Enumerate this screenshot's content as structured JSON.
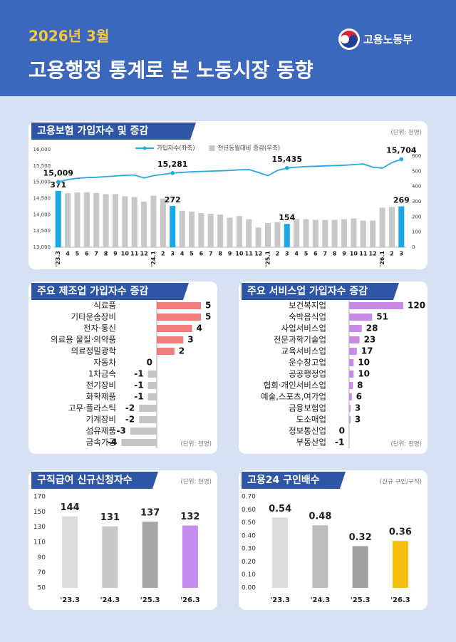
{
  "header": {
    "date": "2026년 3월",
    "title": "고용행정 통계로 본 노동시장 동향",
    "ministry": "고용노동부"
  },
  "chart_data": [
    {
      "type": "combo",
      "title": "고용보험 가입자수 및 증감",
      "unit": "(단위: 천명)",
      "categories": [
        "'23.3",
        "4",
        "5",
        "6",
        "7",
        "8",
        "9",
        "10",
        "11",
        "12",
        "'24.1",
        "2",
        "3",
        "4",
        "5",
        "6",
        "7",
        "8",
        "9",
        "10",
        "11",
        "12",
        "'25.1",
        "2",
        "3",
        "4",
        "5",
        "6",
        "7",
        "8",
        "9",
        "10",
        "11",
        "12",
        "'26.1",
        "2",
        "3"
      ],
      "series": [
        {
          "name": "가입자수(좌축)",
          "kind": "line",
          "color": "#29a8e0",
          "values": [
            15009,
            15080,
            15120,
            15140,
            15150,
            15170,
            15190,
            15210,
            15220,
            15130,
            15200,
            15240,
            15281,
            15300,
            15320,
            15330,
            15340,
            15350,
            15360,
            15380,
            15390,
            15300,
            15200,
            15360,
            15435,
            15460,
            15480,
            15490,
            15500,
            15510,
            15520,
            15540,
            15560,
            15460,
            15430,
            15600,
            15704
          ],
          "value_labels": [
            "15,009",
            null,
            null,
            null,
            null,
            null,
            null,
            null,
            null,
            null,
            null,
            null,
            "15,281",
            null,
            null,
            null,
            null,
            null,
            null,
            null,
            null,
            null,
            null,
            null,
            "15,435",
            null,
            null,
            null,
            null,
            null,
            null,
            null,
            null,
            null,
            null,
            null,
            "15,704"
          ]
        },
        {
          "name": "전년동월대비 증감(우축)",
          "kind": "bar",
          "axis": "y2",
          "color": "#c8c8c8",
          "highlight_color": "#1aa7e6",
          "values": [
            371,
            355,
            360,
            362,
            357,
            350,
            350,
            335,
            330,
            300,
            340,
            320,
            272,
            240,
            235,
            225,
            220,
            215,
            195,
            205,
            185,
            130,
            160,
            165,
            154,
            185,
            185,
            180,
            180,
            180,
            185,
            190,
            175,
            175,
            260,
            265,
            269
          ],
          "value_labels": [
            "371",
            null,
            null,
            null,
            null,
            null,
            null,
            null,
            null,
            null,
            null,
            null,
            "272",
            null,
            null,
            null,
            null,
            null,
            null,
            null,
            null,
            null,
            null,
            null,
            "154",
            null,
            null,
            null,
            null,
            null,
            null,
            null,
            null,
            null,
            null,
            null,
            "269"
          ]
        }
      ],
      "ylim": [
        13000,
        16000
      ],
      "yticks": [
        {
          "value": 13000,
          "label": "13,000"
        },
        {
          "value": 13500,
          "label": "13,500"
        },
        {
          "value": 14000,
          "label": "14,000"
        },
        {
          "value": 14500,
          "label": "14,500"
        },
        {
          "value": 15000,
          "label": "15,000"
        },
        {
          "value": 15500,
          "label": "15,500"
        },
        {
          "value": 16000,
          "label": "16,000"
        }
      ],
      "y2lim": [
        0,
        600
      ],
      "y2ticks": [
        0,
        100,
        200,
        300,
        400,
        500,
        600
      ]
    },
    {
      "type": "hbar",
      "title": "주요 제조업 가입자수 증감",
      "unit": "(단위: 천명)",
      "color": "#f07c7c",
      "negative_color": "#c4c4c4",
      "categories": [
        "식료품",
        "기타운송장비",
        "전자·통신",
        "의료용 물질·의약품",
        "의료정밀광학",
        "자동차",
        "1차금속",
        "전기장비",
        "화학제품",
        "고무·플라스틱",
        "기계장비",
        "섬유제품",
        "금속가공"
      ],
      "values": [
        5,
        5,
        4,
        3,
        2,
        0,
        -1,
        -1,
        -1,
        -2,
        -2,
        -3,
        -4
      ]
    },
    {
      "type": "hbar",
      "title": "주요 서비스업 가입자수 증감",
      "unit": "(단위: 천명)",
      "color": "#c98ce6",
      "negative_color": "#c4c4c4",
      "categories": [
        "보건복지업",
        "숙박음식업",
        "사업서비스업",
        "전문과학기술업",
        "교육서비스업",
        "운수창고업",
        "공공행정업",
        "협회·개인서비스업",
        "예술,스포츠,여가업",
        "금융보험업",
        "도소매업",
        "정보통신업",
        "부동산업"
      ],
      "values": [
        120,
        51,
        28,
        23,
        17,
        10,
        10,
        8,
        6,
        3,
        3,
        0,
        -1
      ]
    },
    {
      "type": "bar",
      "title": "구직급여 신규신청자수",
      "unit": "(단위: 천명)",
      "categories": [
        "'23.3",
        "'24.3",
        "'25.3",
        "'26.3"
      ],
      "values": [
        144,
        131,
        137,
        132
      ],
      "colors": [
        "#dcdcdc",
        "#c8c8c8",
        "#a6a6a6",
        "#c58df0"
      ],
      "ylim": [
        50,
        170
      ],
      "yticks": [
        50,
        70,
        90,
        110,
        130,
        150,
        170
      ]
    },
    {
      "type": "bar",
      "title": "고용24 구인배수",
      "unit": "(신규 구인/구직)",
      "categories": [
        "'23.3",
        "'24.3",
        "'25.3",
        "'26.3"
      ],
      "values": [
        0.54,
        0.48,
        0.32,
        0.36
      ],
      "colors": [
        "#dcdcdc",
        "#bdbdbd",
        "#a0a0a0",
        "#f5c010"
      ],
      "ylim": [
        0,
        0.7
      ],
      "yticks": [
        {
          "value": 0,
          "label": "0.00"
        },
        {
          "value": 0.1,
          "label": "0.10"
        },
        {
          "value": 0.2,
          "label": "0.20"
        },
        {
          "value": 0.3,
          "label": "0.30"
        },
        {
          "value": 0.4,
          "label": "0.40"
        },
        {
          "value": 0.5,
          "label": "0.50"
        },
        {
          "value": 0.6,
          "label": "0.60"
        },
        {
          "value": 0.7,
          "label": "0.70"
        }
      ]
    }
  ]
}
